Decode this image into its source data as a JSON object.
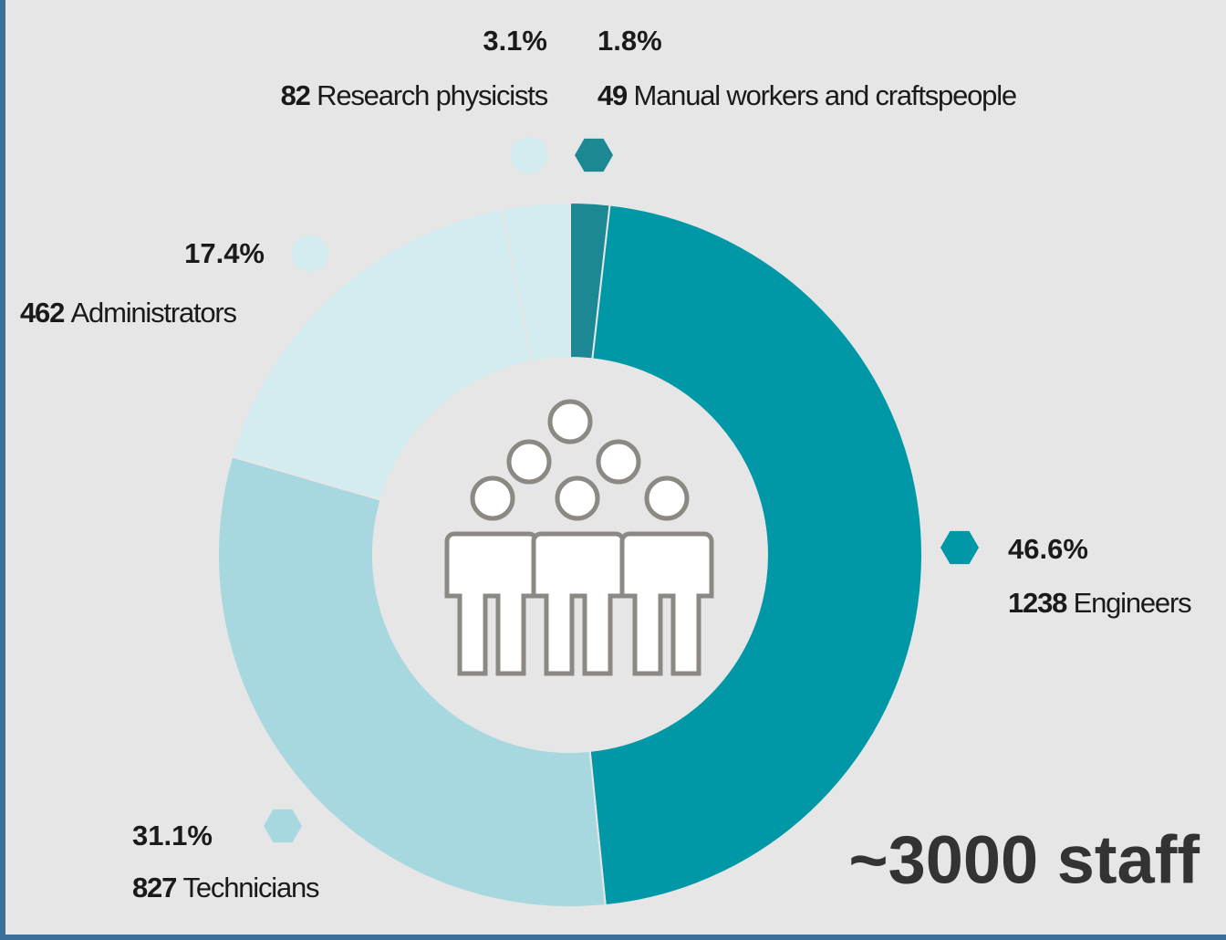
{
  "chart_data": {
    "type": "pie",
    "title": "~3000 staff",
    "categories": [
      "Manual workers and craftspeople",
      "Engineers",
      "Technicians",
      "Administrators",
      "Research physicists"
    ],
    "values": [
      1.8,
      46.6,
      31.1,
      17.4,
      3.1
    ],
    "value_labels": [
      "1.8%",
      "46.6%",
      "31.1%",
      "17.4%",
      "3.1%"
    ],
    "counts": [
      49,
      1238,
      827,
      462,
      82
    ],
    "colors": [
      "#1b8893",
      "#0098a6",
      "#a7d8e0",
      "#d3ecef",
      "#d3ecef"
    ]
  }
}
